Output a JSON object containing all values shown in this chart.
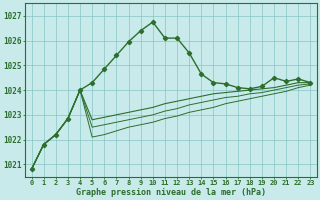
{
  "title": "Graphe pression niveau de la mer (hPa)",
  "background_color": "#c8eaea",
  "grid_color": "#89c4c4",
  "line_color": "#2d6e2d",
  "x_labels": [
    "0",
    "1",
    "2",
    "3",
    "4",
    "5",
    "6",
    "7",
    "8",
    "9",
    "10",
    "11",
    "12",
    "13",
    "14",
    "15",
    "16",
    "17",
    "18",
    "19",
    "20",
    "21",
    "22",
    "23"
  ],
  "ylim": [
    1020.5,
    1027.5
  ],
  "yticks": [
    1021,
    1022,
    1023,
    1024,
    1025,
    1026,
    1027
  ],
  "series1": [
    1020.8,
    1021.8,
    1022.2,
    1022.85,
    1024.0,
    1024.3,
    1024.85,
    1025.4,
    1025.95,
    1026.4,
    1026.75,
    1026.1,
    1026.1,
    1025.5,
    1024.65,
    1024.3,
    1024.25,
    1024.1,
    1024.05,
    1024.15,
    1024.5,
    1024.35,
    1024.45,
    1024.3
  ],
  "series2": [
    1020.8,
    1021.8,
    1022.2,
    1022.85,
    1024.0,
    1022.8,
    1022.9,
    1023.0,
    1023.1,
    1023.2,
    1023.3,
    1023.45,
    1023.55,
    1023.65,
    1023.75,
    1023.85,
    1023.9,
    1023.95,
    1024.0,
    1024.05,
    1024.1,
    1024.2,
    1024.3,
    1024.3
  ],
  "series3": [
    1020.8,
    1021.8,
    1022.2,
    1022.85,
    1024.0,
    1022.5,
    1022.6,
    1022.7,
    1022.8,
    1022.9,
    1023.0,
    1023.15,
    1023.25,
    1023.4,
    1023.5,
    1023.6,
    1023.7,
    1023.75,
    1023.85,
    1023.9,
    1024.0,
    1024.1,
    1024.2,
    1024.25
  ],
  "series4": [
    1020.8,
    1021.8,
    1022.2,
    1022.85,
    1024.0,
    1022.1,
    1022.2,
    1022.35,
    1022.5,
    1022.6,
    1022.7,
    1022.85,
    1022.95,
    1023.1,
    1023.2,
    1023.3,
    1023.45,
    1023.55,
    1023.65,
    1023.75,
    1023.85,
    1023.95,
    1024.1,
    1024.2
  ]
}
